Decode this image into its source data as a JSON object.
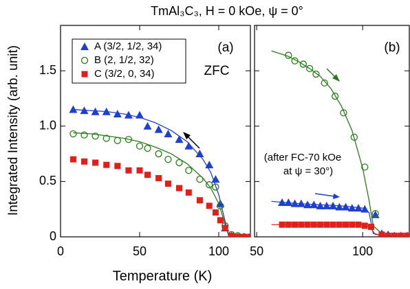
{
  "title": "TmAl₃C₃,  H = 0 kOe,  ψ = 0°",
  "xlabel": "Temperature  (K)",
  "ylabel": "Integrated Intensity  (arb. unit)",
  "chart_data": [
    {
      "type": "scatter",
      "label": "(a)",
      "note": [
        "ZFC"
      ],
      "legend": "upper left",
      "xlim": [
        0,
        120
      ],
      "ylim": [
        0,
        1.91
      ],
      "xticks": [
        0,
        50,
        100
      ],
      "yticks": [
        0,
        0.5,
        {
          "value": 1,
          "label": "1.0"
        },
        1.5
      ],
      "series": [
        {
          "name": "A (3/2, 1/2, 34)",
          "color": "#1f3fd0",
          "marker": "triangle",
          "x": [
            8,
            15,
            22,
            29,
            36,
            43,
            50,
            55,
            62,
            68,
            75,
            81,
            88,
            94,
            98,
            101,
            104,
            108,
            112,
            116,
            120
          ],
          "values": [
            1.15,
            1.14,
            1.13,
            1.13,
            1.11,
            1.1,
            1.1,
            1.0,
            0.97,
            0.93,
            0.88,
            0.82,
            0.75,
            0.65,
            0.52,
            0.3,
            0.08,
            0.01,
            0,
            0,
            0
          ]
        },
        {
          "name": "B (2, 1/2, 32)",
          "color": "#2a7a1a",
          "marker": "circle",
          "x": [
            8,
            15,
            22,
            29,
            36,
            43,
            50,
            55,
            62,
            68,
            75,
            81,
            88,
            94,
            98,
            101,
            104,
            108,
            112,
            116,
            120
          ],
          "values": [
            0.93,
            0.92,
            0.91,
            0.89,
            0.87,
            0.88,
            0.82,
            0.8,
            0.75,
            0.7,
            0.67,
            0.6,
            0.52,
            0.47,
            0.45,
            0.28,
            0.1,
            0.02,
            0.01,
            0,
            0
          ]
        },
        {
          "name": "C (3/2, 0, 34)",
          "color": "#e0201a",
          "marker": "square",
          "x": [
            8,
            15,
            22,
            29,
            36,
            43,
            50,
            55,
            62,
            68,
            75,
            81,
            88,
            94,
            98,
            101,
            104,
            108,
            112,
            116,
            120
          ],
          "values": [
            0.7,
            0.68,
            0.67,
            0.65,
            0.64,
            0.6,
            0.6,
            0.56,
            0.53,
            0.48,
            0.44,
            0.4,
            0.33,
            0.28,
            0.22,
            0.15,
            0.08,
            0.01,
            0,
            0,
            0
          ]
        }
      ],
      "fits": [
        {
          "color": "#1f3fd0",
          "x": [
            8,
            20,
            30,
            40,
            50,
            60,
            70,
            80,
            90,
            95,
            100,
            103,
            106,
            110,
            120
          ],
          "values": [
            1.15,
            1.14,
            1.13,
            1.11,
            1.08,
            1.03,
            0.96,
            0.86,
            0.7,
            0.58,
            0.38,
            0.2,
            0.02,
            0,
            0
          ]
        },
        {
          "color": "#2a7a1a",
          "x": [
            8,
            20,
            30,
            40,
            50,
            60,
            70,
            80,
            90,
            95,
            100,
            103,
            106,
            110,
            120
          ],
          "values": [
            0.94,
            0.93,
            0.91,
            0.89,
            0.86,
            0.81,
            0.75,
            0.66,
            0.53,
            0.44,
            0.3,
            0.16,
            0.02,
            0,
            0
          ]
        }
      ]
    },
    {
      "type": "scatter",
      "label": "(b)",
      "note": [
        "(after FC-70 kOe",
        "at ψ = 30°)"
      ],
      "xlim": [
        49,
        122
      ],
      "ylim": [
        0,
        1.91
      ],
      "xticks": [
        50,
        100
      ],
      "yticks": [
        0,
        0.5,
        1,
        1.5
      ],
      "series": [
        {
          "color": "#1f3fd0",
          "marker": "triangle",
          "x": [
            62,
            65,
            68,
            71,
            74,
            77,
            80,
            83,
            86,
            89,
            92,
            95,
            98,
            101,
            106,
            109,
            112,
            115,
            118,
            121
          ],
          "values": [
            0.31,
            0.31,
            0.3,
            0.3,
            0.29,
            0.29,
            0.28,
            0.28,
            0.28,
            0.27,
            0.27,
            0.26,
            0.26,
            0.25,
            0.2,
            0.03,
            0.02,
            0.01,
            0.01,
            0.01
          ]
        },
        {
          "color": "#2a7a1a",
          "marker": "circle",
          "x": [
            65,
            68,
            72,
            75,
            78,
            82,
            87,
            91,
            96,
            101,
            106
          ],
          "values": [
            1.64,
            1.59,
            1.56,
            1.52,
            1.47,
            1.39,
            1.27,
            1.12,
            0.9,
            0.63,
            0.21
          ]
        },
        {
          "color": "#e0201a",
          "marker": "square",
          "x": [
            62,
            65,
            68,
            71,
            74,
            77,
            80,
            83,
            86,
            89,
            92,
            95,
            98,
            101,
            104,
            109,
            112,
            115,
            118,
            121
          ],
          "values": [
            0.11,
            0.11,
            0.11,
            0.11,
            0.11,
            0.11,
            0.11,
            0.11,
            0.11,
            0.11,
            0.11,
            0.11,
            0.11,
            0.1,
            0.09,
            0.02,
            0.01,
            0.01,
            0.01,
            0.01
          ]
        }
      ],
      "fits": [
        {
          "color": "#1f3fd0",
          "x": [
            57,
            70,
            80,
            90,
            100,
            103,
            105,
            110,
            122
          ],
          "values": [
            0.32,
            0.3,
            0.29,
            0.28,
            0.26,
            0.22,
            0.03,
            0.01,
            0.01
          ]
        },
        {
          "color": "#2a7a1a",
          "x": [
            57,
            65,
            70,
            75,
            80,
            85,
            90,
            95,
            100,
            103,
            105,
            110,
            122
          ],
          "values": [
            1.68,
            1.63,
            1.58,
            1.52,
            1.45,
            1.34,
            1.18,
            0.96,
            0.62,
            0.33,
            0.1,
            0.01,
            0.01
          ]
        },
        {
          "color": "#e0201a",
          "x": [
            57,
            100,
            103,
            106,
            122
          ],
          "values": [
            0.11,
            0.11,
            0.1,
            0.02,
            0.01
          ]
        }
      ]
    }
  ]
}
